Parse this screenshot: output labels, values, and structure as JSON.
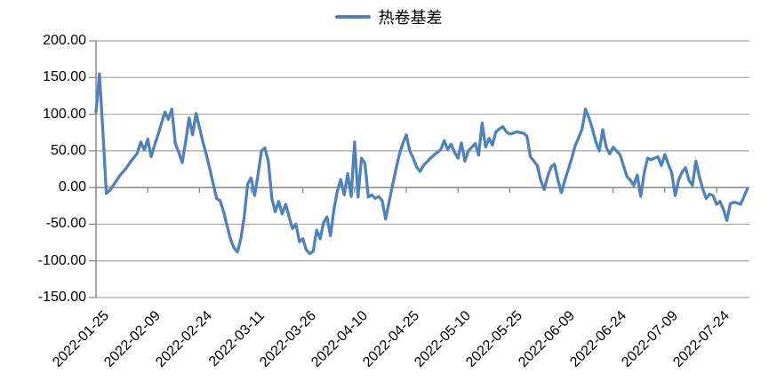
{
  "chart_data": {
    "type": "line",
    "title": "",
    "legend": {
      "position": "top",
      "entries": [
        "热卷基差"
      ]
    },
    "series": [
      {
        "name": "热卷基差",
        "color": "#4F81BD",
        "values": [
          103,
          155,
          75,
          -8,
          -4,
          3,
          10,
          17,
          22,
          28,
          35,
          41,
          47,
          62,
          51,
          66,
          42,
          58,
          72,
          88,
          103,
          93,
          107,
          60,
          48,
          34,
          62,
          95,
          72,
          101,
          82,
          62,
          45,
          25,
          5,
          -15,
          -18,
          -33,
          -52,
          -70,
          -82,
          -88,
          -70,
          -40,
          5,
          13,
          -11,
          18,
          50,
          54,
          35,
          -15,
          -33,
          -19,
          -36,
          -23,
          -40,
          -56,
          -50,
          -74,
          -70,
          -85,
          -90,
          -87,
          -58,
          -70,
          -48,
          -40,
          -66,
          -30,
          -5,
          11,
          -10,
          19,
          -12,
          62,
          -13,
          40,
          33,
          -13,
          -10,
          -15,
          -12,
          -18,
          -43,
          -20,
          3,
          25,
          45,
          60,
          72,
          50,
          40,
          28,
          22,
          30,
          35,
          40,
          44,
          48,
          52,
          64,
          52,
          59,
          48,
          40,
          61,
          36,
          50,
          55,
          60,
          44,
          88,
          55,
          67,
          58,
          76,
          80,
          83,
          76,
          73,
          74,
          76,
          75,
          74,
          70,
          42,
          36,
          30,
          10,
          -3,
          15,
          28,
          32,
          10,
          -7,
          10,
          25,
          40,
          57,
          68,
          80,
          107,
          95,
          80,
          62,
          50,
          79,
          55,
          46,
          55,
          50,
          45,
          30,
          15,
          10,
          3,
          17,
          -12,
          20,
          40,
          38,
          40,
          42,
          30,
          45,
          32,
          20,
          -11,
          10,
          21,
          27,
          10,
          3,
          36,
          15,
          -2,
          -15,
          -9,
          -11,
          -23,
          -19,
          -30,
          -45,
          -22,
          -20,
          -21,
          -23,
          -12,
          -1
        ]
      }
    ],
    "x_start": "2022-01-25",
    "x_interval_days": 1,
    "xtick_labels": [
      "2022-01-25",
      "2022-02-09",
      "2022-02-24",
      "2022-03-11",
      "2022-03-26",
      "2022-04-10",
      "2022-04-25",
      "2022-05-10",
      "2022-05-25",
      "2022-06-09",
      "2022-06-24",
      "2022-07-09",
      "2022-07-24"
    ],
    "xtick_every_days": 15,
    "ytick_labels": [
      "200.00",
      "150.00",
      "100.00",
      "50.00",
      "0.00",
      "-50.00",
      "-100.00",
      "-150.00"
    ],
    "yticks": [
      200,
      150,
      100,
      50,
      0,
      -50,
      -100,
      -150
    ],
    "ylim": [
      -150,
      200
    ],
    "grid": true,
    "grid_color": "#A6A6A6",
    "axis_color": "#808080",
    "background": "#FFFFFF"
  }
}
